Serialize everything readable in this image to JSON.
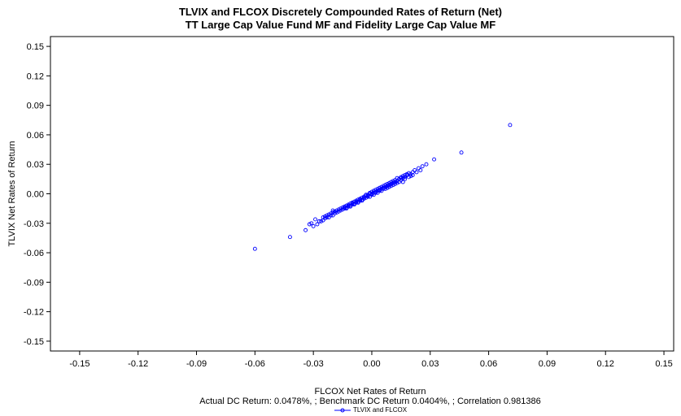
{
  "chart_data": {
    "type": "scatter",
    "title": "TLVIX and FLCOX Discretely Compounded Rates of Return (Net)",
    "subtitle": "TT Large Cap Value Fund MF and Fidelity Large Cap Value MF",
    "xlabel": "FLCOX Net Rates of Return",
    "ylabel": "TLVIX Net Rates of Return",
    "footnote": "Actual DC Return: 0.0478%, ; Benchmark DC Return 0.0404%, ; Correlation 0.981386",
    "xlim": [
      -0.165,
      0.155
    ],
    "ylim": [
      -0.16,
      0.16
    ],
    "x_ticks": [
      "-0.15",
      "-0.12",
      "-0.09",
      "-0.06",
      "-0.03",
      "0.00",
      "0.03",
      "0.06",
      "0.09",
      "0.12",
      "0.15"
    ],
    "y_ticks": [
      "0.15",
      "0.12",
      "0.09",
      "0.06",
      "0.03",
      "0.00",
      "-0.03",
      "-0.06",
      "-0.09",
      "-0.12",
      "-0.15"
    ],
    "grid": false,
    "legend_position": "bottom-center",
    "series": [
      {
        "name": "TLVIX and FLCOX",
        "color": "#0000ff",
        "marker": "open-circle",
        "points": [
          [
            0.071,
            0.07
          ],
          [
            0.046,
            0.042
          ],
          [
            0.032,
            0.035
          ],
          [
            0.028,
            0.03
          ],
          [
            0.026,
            0.028
          ],
          [
            0.024,
            0.026
          ],
          [
            0.022,
            0.024
          ],
          [
            0.021,
            0.022
          ],
          [
            0.02,
            0.02
          ],
          [
            0.019,
            0.021
          ],
          [
            0.018,
            0.019
          ],
          [
            0.017,
            0.017
          ],
          [
            0.016,
            0.018
          ],
          [
            0.015,
            0.016
          ],
          [
            0.014,
            0.015
          ],
          [
            0.013,
            0.013
          ],
          [
            0.012,
            0.014
          ],
          [
            0.011,
            0.011
          ],
          [
            0.01,
            0.012
          ],
          [
            0.009,
            0.009
          ],
          [
            0.008,
            0.01
          ],
          [
            0.007,
            0.007
          ],
          [
            0.006,
            0.008
          ],
          [
            0.005,
            0.005
          ],
          [
            0.004,
            0.006
          ],
          [
            0.003,
            0.003
          ],
          [
            0.002,
            0.004
          ],
          [
            0.001,
            0.001
          ],
          [
            0.0,
            0.002
          ],
          [
            -0.001,
            0.0
          ],
          [
            -0.002,
            -0.001
          ],
          [
            -0.003,
            -0.002
          ],
          [
            -0.004,
            -0.003
          ],
          [
            -0.005,
            -0.006
          ],
          [
            -0.006,
            -0.005
          ],
          [
            -0.007,
            -0.008
          ],
          [
            -0.008,
            -0.007
          ],
          [
            -0.009,
            -0.01
          ],
          [
            -0.01,
            -0.009
          ],
          [
            -0.011,
            -0.012
          ],
          [
            -0.012,
            -0.011
          ],
          [
            -0.013,
            -0.014
          ],
          [
            -0.014,
            -0.013
          ],
          [
            -0.015,
            -0.016
          ],
          [
            -0.016,
            -0.015
          ],
          [
            -0.017,
            -0.018
          ],
          [
            -0.018,
            -0.017
          ],
          [
            -0.019,
            -0.02
          ],
          [
            -0.02,
            -0.019
          ],
          [
            -0.021,
            -0.022
          ],
          [
            -0.022,
            -0.021
          ],
          [
            -0.023,
            -0.024
          ],
          [
            -0.024,
            -0.023
          ],
          [
            -0.025,
            -0.027
          ],
          [
            -0.026,
            -0.028
          ],
          [
            -0.028,
            -0.031
          ],
          [
            -0.03,
            -0.033
          ],
          [
            -0.031,
            -0.03
          ],
          [
            -0.034,
            -0.037
          ],
          [
            -0.042,
            -0.044
          ],
          [
            -0.06,
            -0.056
          ],
          [
            0.015,
            0.014
          ],
          [
            0.016,
            0.012
          ],
          [
            0.013,
            0.016
          ],
          [
            0.012,
            0.01
          ],
          [
            0.011,
            0.013
          ],
          [
            0.01,
            0.008
          ],
          [
            0.009,
            0.011
          ],
          [
            0.008,
            0.006
          ],
          [
            0.007,
            0.009
          ],
          [
            0.006,
            0.005
          ],
          [
            0.005,
            0.007
          ],
          [
            0.004,
            0.003
          ],
          [
            0.003,
            0.005
          ],
          [
            0.002,
            0.001
          ],
          [
            0.001,
            0.003
          ],
          [
            0.0,
            -0.001
          ],
          [
            -0.001,
            0.001
          ],
          [
            -0.002,
            -0.003
          ],
          [
            -0.003,
            -0.001
          ],
          [
            -0.004,
            -0.005
          ],
          [
            -0.005,
            -0.004
          ],
          [
            -0.006,
            -0.007
          ],
          [
            -0.007,
            -0.006
          ],
          [
            -0.008,
            -0.009
          ],
          [
            -0.009,
            -0.008
          ],
          [
            -0.01,
            -0.011
          ],
          [
            -0.011,
            -0.01
          ],
          [
            -0.012,
            -0.013
          ],
          [
            -0.013,
            -0.012
          ],
          [
            -0.014,
            -0.015
          ],
          [
            -0.015,
            -0.014
          ],
          [
            -0.016,
            -0.017
          ],
          [
            -0.018,
            -0.019
          ],
          [
            -0.019,
            -0.018
          ],
          [
            -0.02,
            -0.022
          ],
          [
            -0.021,
            -0.02
          ],
          [
            -0.022,
            -0.024
          ],
          [
            -0.024,
            -0.025
          ],
          [
            -0.025,
            -0.024
          ],
          [
            0.02,
            0.018
          ],
          [
            0.019,
            0.017
          ],
          [
            0.018,
            0.02
          ],
          [
            0.017,
            0.015
          ],
          [
            0.016,
            0.016
          ],
          [
            0.014,
            0.012
          ],
          [
            0.012,
            0.012
          ],
          [
            0.01,
            0.01
          ],
          [
            0.008,
            0.008
          ],
          [
            0.006,
            0.006
          ],
          [
            0.004,
            0.004
          ],
          [
            0.002,
            0.002
          ],
          [
            0.0,
            0.0
          ],
          [
            -0.002,
            -0.002
          ],
          [
            -0.004,
            -0.004
          ],
          [
            -0.006,
            -0.006
          ],
          [
            -0.008,
            -0.008
          ],
          [
            -0.01,
            -0.01
          ],
          [
            -0.012,
            -0.012
          ],
          [
            -0.014,
            -0.014
          ],
          [
            0.023,
            0.022
          ],
          [
            0.025,
            0.024
          ],
          [
            0.021,
            0.019
          ],
          [
            0.003,
            0.001
          ],
          [
            -0.001,
            -0.003
          ],
          [
            -0.003,
            -0.004
          ],
          [
            0.001,
            -0.001
          ],
          [
            0.005,
            0.003
          ],
          [
            0.007,
            0.005
          ],
          [
            0.009,
            0.007
          ],
          [
            0.011,
            0.009
          ],
          [
            0.013,
            0.011
          ],
          [
            -0.005,
            -0.007
          ],
          [
            -0.007,
            -0.009
          ],
          [
            -0.009,
            -0.011
          ],
          [
            -0.011,
            -0.013
          ],
          [
            -0.013,
            -0.015
          ],
          [
            -0.017,
            -0.016
          ],
          [
            -0.023,
            -0.022
          ],
          [
            -0.027,
            -0.028
          ],
          [
            -0.032,
            -0.031
          ],
          [
            -0.029,
            -0.026
          ],
          [
            -0.02,
            -0.017
          ],
          [
            0.015,
            0.017
          ],
          [
            0.017,
            0.019
          ]
        ]
      }
    ]
  }
}
